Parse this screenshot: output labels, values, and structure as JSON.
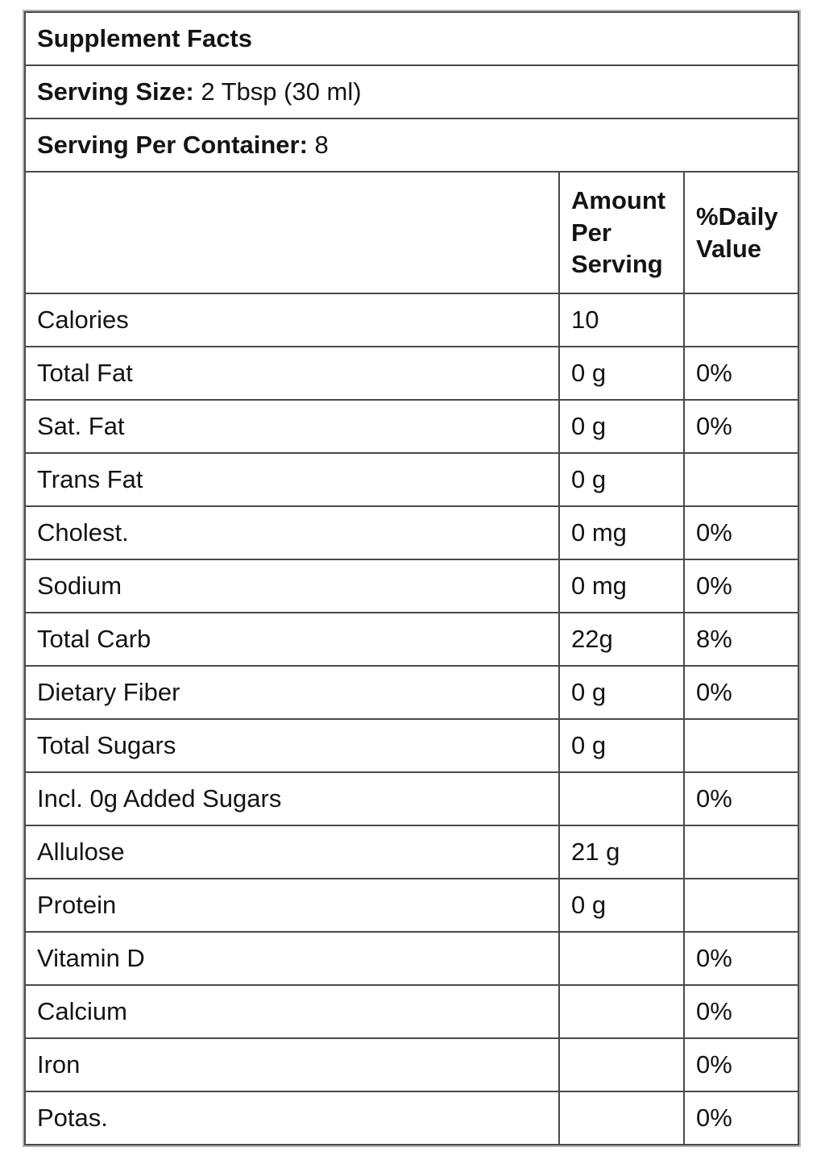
{
  "label": {
    "title": "Supplement Facts",
    "serving_size": {
      "label": "Serving Size:",
      "value": "2 Tbsp (30 ml)"
    },
    "servings_per_container": {
      "label": "Serving Per Container:",
      "value": "8"
    },
    "columns": {
      "amount": "Amount Per Serving",
      "daily_value": "%Daily Value"
    },
    "rows": [
      {
        "name": "Calories",
        "amount": "10",
        "dv": ""
      },
      {
        "name": "Total Fat",
        "amount": "0 g",
        "dv": "0%"
      },
      {
        "name": "Sat. Fat",
        "amount": "0 g",
        "dv": "0%"
      },
      {
        "name": "Trans Fat",
        "amount": "0 g",
        "dv": ""
      },
      {
        "name": "Cholest.",
        "amount": "0 mg",
        "dv": "0%"
      },
      {
        "name": "Sodium",
        "amount": "0 mg",
        "dv": "0%"
      },
      {
        "name": "Total Carb",
        "amount": "22g",
        "dv": "8%"
      },
      {
        "name": "Dietary Fiber",
        "amount": "0 g",
        "dv": "0%"
      },
      {
        "name": "Total Sugars",
        "amount": "0 g",
        "dv": ""
      },
      {
        "name": "Incl. 0g Added Sugars",
        "amount": "",
        "dv": "0%"
      },
      {
        "name": "Allulose",
        "amount": "21 g",
        "dv": ""
      },
      {
        "name": "Protein",
        "amount": "0 g",
        "dv": ""
      },
      {
        "name": "Vitamin D",
        "amount": "",
        "dv": "0%"
      },
      {
        "name": "Calcium",
        "amount": "",
        "dv": "0%"
      },
      {
        "name": "Iron",
        "amount": "",
        "dv": "0%"
      },
      {
        "name": "Potas.",
        "amount": "",
        "dv": "0%"
      }
    ]
  }
}
